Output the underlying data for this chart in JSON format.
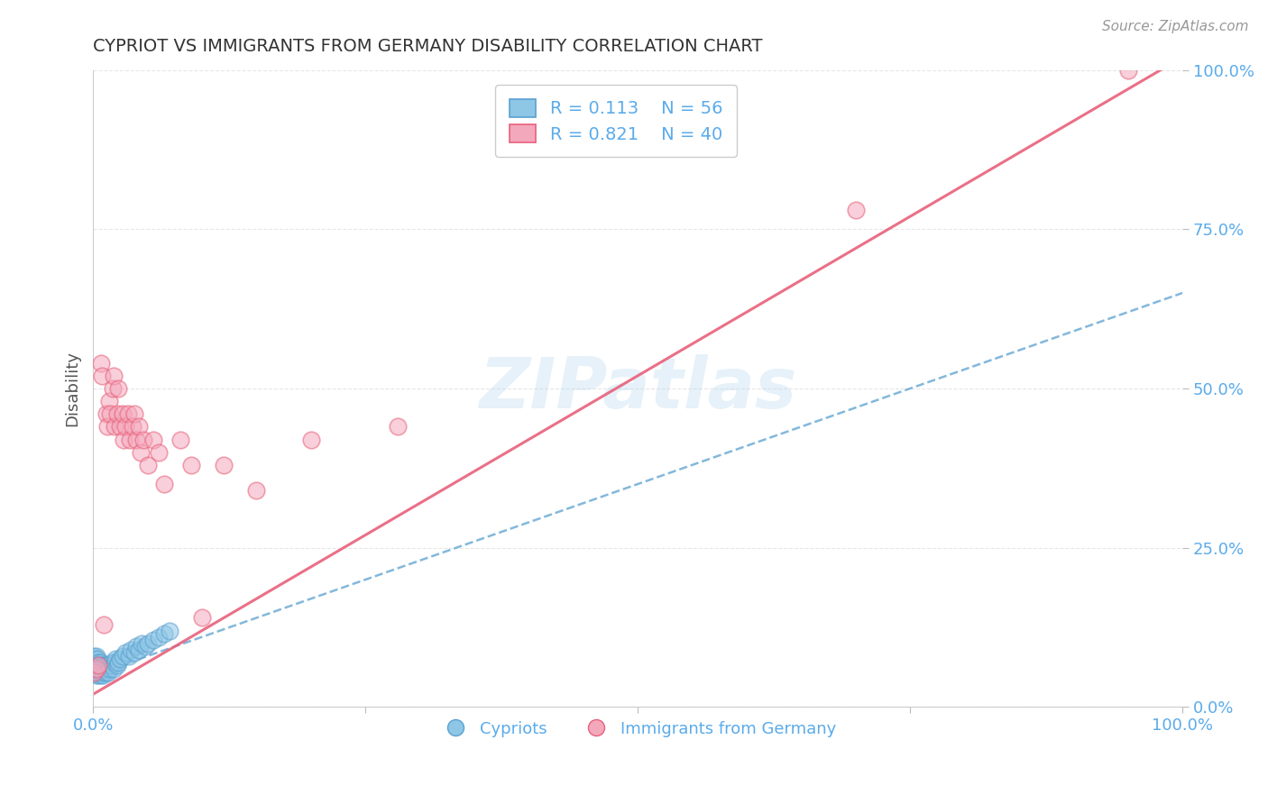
{
  "title": "CYPRIOT VS IMMIGRANTS FROM GERMANY DISABILITY CORRELATION CHART",
  "source": "Source: ZipAtlas.com",
  "xlabel": "",
  "ylabel": "Disability",
  "watermark": "ZIPatlas",
  "R_blue": 0.113,
  "N_blue": 56,
  "R_pink": 0.821,
  "N_pink": 40,
  "blue_color": "#8ec6e6",
  "pink_color": "#f4a8bc",
  "blue_line_color": "#5aa0d0",
  "pink_line_color": "#e8607a",
  "legend_blue_label": "Cypriots",
  "legend_pink_label": "Immigrants from Germany",
  "xmin": 0.0,
  "xmax": 1.0,
  "ymin": 0.0,
  "ymax": 1.0,
  "ytick_labels": [
    "0.0%",
    "25.0%",
    "50.0%",
    "75.0%",
    "100.0%"
  ],
  "ytick_values": [
    0.0,
    0.25,
    0.5,
    0.75,
    1.0
  ],
  "xtick_labels": [
    "0.0%",
    "",
    "",
    "",
    "100.0%"
  ],
  "xtick_values": [
    0.0,
    0.25,
    0.5,
    0.75,
    1.0
  ],
  "blue_x": [
    0.001,
    0.001,
    0.001,
    0.002,
    0.002,
    0.002,
    0.003,
    0.003,
    0.003,
    0.003,
    0.004,
    0.004,
    0.004,
    0.005,
    0.005,
    0.005,
    0.006,
    0.006,
    0.007,
    0.007,
    0.007,
    0.008,
    0.008,
    0.009,
    0.009,
    0.01,
    0.01,
    0.011,
    0.012,
    0.012,
    0.013,
    0.014,
    0.015,
    0.016,
    0.017,
    0.018,
    0.019,
    0.02,
    0.021,
    0.022,
    0.023,
    0.025,
    0.027,
    0.03,
    0.033,
    0.035,
    0.038,
    0.04,
    0.042,
    0.045,
    0.048,
    0.05,
    0.055,
    0.06,
    0.065,
    0.07
  ],
  "blue_y": [
    0.06,
    0.07,
    0.08,
    0.055,
    0.065,
    0.075,
    0.05,
    0.06,
    0.07,
    0.08,
    0.055,
    0.065,
    0.075,
    0.05,
    0.06,
    0.07,
    0.055,
    0.065,
    0.05,
    0.06,
    0.07,
    0.055,
    0.065,
    0.05,
    0.06,
    0.055,
    0.065,
    0.06,
    0.055,
    0.065,
    0.06,
    0.055,
    0.065,
    0.06,
    0.07,
    0.065,
    0.06,
    0.07,
    0.075,
    0.065,
    0.07,
    0.075,
    0.08,
    0.085,
    0.08,
    0.09,
    0.085,
    0.095,
    0.09,
    0.1,
    0.095,
    0.1,
    0.105,
    0.11,
    0.115,
    0.12
  ],
  "pink_x": [
    0.001,
    0.003,
    0.005,
    0.007,
    0.008,
    0.01,
    0.012,
    0.013,
    0.015,
    0.016,
    0.018,
    0.019,
    0.02,
    0.022,
    0.023,
    0.025,
    0.027,
    0.028,
    0.03,
    0.032,
    0.034,
    0.036,
    0.038,
    0.04,
    0.042,
    0.044,
    0.046,
    0.05,
    0.055,
    0.06,
    0.065,
    0.08,
    0.09,
    0.1,
    0.12,
    0.15,
    0.2,
    0.28,
    0.7,
    0.95
  ],
  "pink_y": [
    0.055,
    0.06,
    0.065,
    0.54,
    0.52,
    0.13,
    0.46,
    0.44,
    0.48,
    0.46,
    0.5,
    0.52,
    0.44,
    0.46,
    0.5,
    0.44,
    0.46,
    0.42,
    0.44,
    0.46,
    0.42,
    0.44,
    0.46,
    0.42,
    0.44,
    0.4,
    0.42,
    0.38,
    0.42,
    0.4,
    0.35,
    0.42,
    0.38,
    0.14,
    0.38,
    0.34,
    0.42,
    0.44,
    0.78,
    1.0
  ],
  "background_color": "#ffffff",
  "grid_color": "#e0e0e0",
  "title_color": "#333333",
  "axis_color": "#5aabeb",
  "tick_color": "#5aabeb"
}
